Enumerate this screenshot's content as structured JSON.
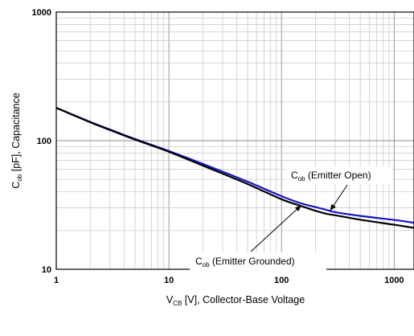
{
  "chart_data": {
    "type": "line",
    "x_scale": "log",
    "y_scale": "log",
    "xlim": [
      1,
      1500
    ],
    "ylim": [
      10,
      1000
    ],
    "grid": true,
    "x_ticks": [
      {
        "value": 1,
        "label": "1"
      },
      {
        "value": 10,
        "label": "10"
      },
      {
        "value": 100,
        "label": "100"
      },
      {
        "value": 1000,
        "label": "1000"
      }
    ],
    "y_ticks": [
      {
        "value": 10,
        "label": "10"
      },
      {
        "value": 100,
        "label": "100"
      },
      {
        "value": 1000,
        "label": "1000"
      }
    ],
    "xlabel": {
      "main": "V",
      "sub": "CB",
      "rest": " [V], Collector-Base Voltage"
    },
    "ylabel": {
      "main": "C",
      "sub": "ob",
      "rest": " [pF], Capacitance"
    },
    "series": [
      {
        "name": "Cob (Emitter Open)",
        "color": "#1414c8",
        "x": [
          1,
          2,
          3,
          5,
          10,
          20,
          50,
          100,
          150,
          200,
          250,
          300,
          500,
          1000,
          1500
        ],
        "y": [
          180,
          140,
          122,
          103,
          83,
          66,
          48,
          37,
          32.5,
          30.5,
          29,
          27.8,
          26,
          24.2,
          23
        ]
      },
      {
        "name": "Cob (Emitter Grounded)",
        "color": "#000000",
        "x": [
          1,
          2,
          3,
          5,
          10,
          20,
          50,
          100,
          150,
          200,
          250,
          300,
          500,
          1000,
          1500
        ],
        "y": [
          180,
          139,
          121,
          102,
          82,
          64,
          46,
          35,
          31,
          28.5,
          27,
          26.3,
          24.3,
          22.2,
          21
        ]
      }
    ],
    "annotations": [
      {
        "main": "C",
        "sub": "ob",
        "rest": " (Emitter Open)",
        "target_x": 270,
        "target_y": 28.5
      },
      {
        "main": "C",
        "sub": "ob",
        "rest": " (Emitter Grounded)",
        "target_x": 150,
        "target_y": 31.5
      }
    ]
  }
}
